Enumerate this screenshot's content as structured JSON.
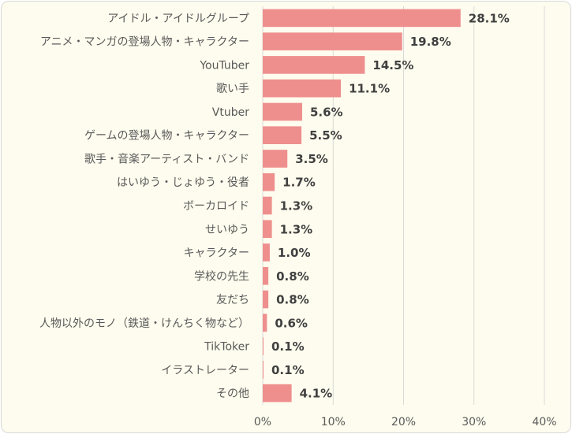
{
  "colors": {
    "bar": "#ee8f8e",
    "background": "#fefcee",
    "grid": "#d9d9d9"
  },
  "chart_data": {
    "type": "bar",
    "orientation": "horizontal",
    "categories": [
      "アイドル・アイドルグループ",
      "アニメ・マンガの登場人物・キャラクター",
      "YouTuber",
      "歌い手",
      "Vtuber",
      "ゲームの登場人物・キャラクター",
      "歌手・音楽アーティスト・バンド",
      "はいゆう・じょゆう・役者",
      "ボーカロイド",
      "せいゆう",
      "キャラクター",
      "学校の先生",
      "友だち",
      "人物以外のモノ（鉄道・けんちく物など）",
      "TikToker",
      "イラストレーター",
      "その他"
    ],
    "values": [
      28.1,
      19.8,
      14.5,
      11.1,
      5.6,
      5.5,
      3.5,
      1.7,
      1.3,
      1.3,
      1.0,
      0.8,
      0.8,
      0.6,
      0.1,
      0.1,
      4.1
    ],
    "value_labels": [
      "28.1%",
      "19.8%",
      "14.5%",
      "11.1%",
      "5.6%",
      "5.5%",
      "3.5%",
      "1.7%",
      "1.3%",
      "1.3%",
      "1.0%",
      "0.8%",
      "0.8%",
      "0.6%",
      "0.1%",
      "0.1%",
      "4.1%"
    ],
    "xlim": [
      0,
      40
    ],
    "x_ticks": [
      0,
      10,
      20,
      30,
      40
    ],
    "x_tick_labels": [
      "0%",
      "10%",
      "20%",
      "30%",
      "40%"
    ],
    "grid": true,
    "legend": "none"
  }
}
